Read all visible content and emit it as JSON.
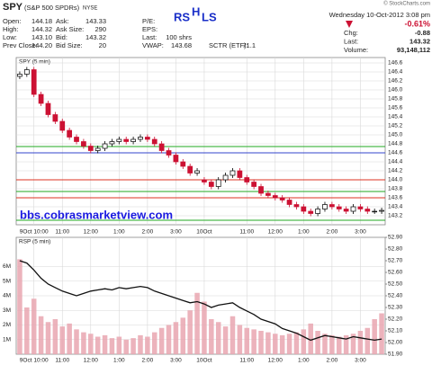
{
  "header": {
    "symbol": "SPY",
    "name": "(S&P 500 SPDRs)",
    "exchange": "NYSE",
    "credit": "© StockCharts.com",
    "datetime": "Wednesday  10-Oct-2012  3:08 pm",
    "change_pct": "-0.61%",
    "fields": [
      {
        "label": "Open:",
        "value": "144.18"
      },
      {
        "label": "High:",
        "value": "144.32"
      },
      {
        "label": "Low:",
        "value": "143.10"
      },
      {
        "label": "Prev Close:",
        "value": "144.20"
      },
      {
        "label": "Ask:",
        "value": "143.33"
      },
      {
        "label": "Ask Size:",
        "value": "290"
      },
      {
        "label": "Bid:",
        "value": "143.32"
      },
      {
        "label": "Bid Size:",
        "value": "20"
      },
      {
        "label": "P/E:"
      },
      {
        "label": "EPS:"
      },
      {
        "label": "Last:",
        "value": "100 shrs"
      },
      {
        "label": "VWAP:",
        "value": "143.68"
      },
      {
        "label": "SCTR (ETF):",
        "value": "71.1"
      }
    ],
    "stats": [
      {
        "label": "Chg:",
        "value": "-0.88"
      },
      {
        "label": "Last:",
        "value": "143.32"
      },
      {
        "label": "Volume:",
        "value": "93,148,112"
      }
    ],
    "pattern": [
      "RS",
      "H",
      "LS"
    ],
    "website": "bbs.cobrasmarketview.com"
  },
  "chart_data": [
    {
      "type": "candlestick",
      "label": "SPY (5 min)",
      "categories": [
        null,
        null,
        "9Oct 10:00",
        null,
        null,
        null,
        "11:00",
        null,
        null,
        null,
        "12:00",
        null,
        null,
        null,
        "1:00",
        null,
        null,
        null,
        "2:00",
        null,
        null,
        null,
        "3:00",
        null,
        null,
        null,
        "10Oct",
        null,
        null,
        null,
        null,
        null,
        "11:00",
        null,
        null,
        null,
        "12:00",
        null,
        null,
        null,
        "1:00",
        null,
        null,
        null,
        "2:00",
        null,
        null,
        null,
        "3:00",
        null,
        null,
        null
      ],
      "open": [
        146.3,
        146.35,
        146.45,
        145.9,
        145.7,
        145.45,
        145.3,
        145.1,
        144.95,
        144.85,
        144.75,
        144.65,
        144.7,
        144.8,
        144.85,
        144.9,
        144.85,
        144.9,
        144.95,
        144.9,
        144.8,
        144.65,
        144.55,
        144.4,
        144.3,
        144.15,
        144.0,
        143.95,
        143.85,
        144.0,
        144.1,
        144.2,
        144.05,
        143.95,
        143.85,
        143.7,
        143.65,
        143.6,
        143.55,
        143.45,
        143.4,
        143.3,
        143.25,
        143.35,
        143.45,
        143.4,
        143.35,
        143.3,
        143.4,
        143.35,
        143.3,
        143.3
      ],
      "high": [
        146.41,
        146.51,
        146.51,
        145.96,
        145.76,
        145.51,
        145.36,
        145.16,
        145.01,
        144.91,
        144.81,
        144.76,
        144.86,
        144.91,
        144.96,
        144.96,
        144.96,
        145.01,
        145.01,
        144.96,
        144.86,
        144.71,
        144.61,
        144.46,
        144.36,
        144.26,
        144.06,
        144.01,
        144.06,
        144.16,
        144.26,
        144.26,
        144.11,
        144.01,
        143.91,
        143.76,
        143.71,
        143.66,
        143.61,
        143.51,
        143.46,
        143.36,
        143.41,
        143.51,
        143.51,
        143.46,
        143.41,
        143.46,
        143.46,
        143.41,
        143.36,
        143.38
      ],
      "low": [
        146.24,
        146.29,
        145.84,
        145.64,
        145.39,
        145.24,
        145.04,
        144.89,
        144.79,
        144.69,
        144.59,
        144.59,
        144.64,
        144.74,
        144.79,
        144.79,
        144.79,
        144.84,
        144.84,
        144.74,
        144.59,
        144.49,
        144.34,
        144.24,
        144.09,
        144.09,
        143.89,
        143.79,
        143.79,
        143.94,
        144.04,
        143.99,
        143.89,
        143.79,
        143.64,
        143.59,
        143.54,
        143.49,
        143.39,
        143.34,
        143.24,
        143.19,
        143.19,
        143.29,
        143.34,
        143.29,
        143.24,
        143.24,
        143.29,
        143.24,
        143.24,
        143.24
      ],
      "close": [
        146.35,
        146.45,
        145.9,
        145.7,
        145.45,
        145.3,
        145.1,
        144.95,
        144.85,
        144.75,
        144.65,
        144.7,
        144.8,
        144.85,
        144.9,
        144.85,
        144.9,
        144.95,
        144.9,
        144.8,
        144.65,
        144.55,
        144.4,
        144.3,
        144.15,
        144.2,
        143.95,
        143.85,
        144.0,
        144.1,
        144.2,
        144.05,
        143.95,
        143.85,
        143.7,
        143.65,
        143.6,
        143.55,
        143.45,
        143.4,
        143.3,
        143.25,
        143.35,
        143.45,
        143.4,
        143.35,
        143.3,
        143.4,
        143.35,
        143.3,
        143.3,
        143.32
      ],
      "up_color": "#000000",
      "down_color": "#cc1133",
      "ylim": [
        143.0,
        146.72
      ],
      "yticks": [
        143.2,
        143.4,
        143.6,
        143.8,
        {
          "value": 144.0,
          "label": "144.0"
        },
        144.2,
        144.4,
        144.6,
        144.8,
        {
          "value": 145.0,
          "label": "145.0"
        },
        145.2,
        145.4,
        145.6,
        145.8,
        {
          "value": 146.0,
          "label": "146.0"
        },
        146.2,
        146.4,
        146.6
      ],
      "hlines": [
        {
          "value": 144.74,
          "color": "#22aa22"
        },
        {
          "value": 144.6,
          "color": "#3344cc"
        },
        {
          "value": 144.0,
          "color": "#dd3322"
        },
        {
          "value": 143.74,
          "color": "#22aa22"
        },
        {
          "value": 143.6,
          "color": "#dd3322"
        },
        {
          "value": 143.1,
          "color": "#22aa22"
        }
      ],
      "grid": true
    },
    {
      "type": "volume",
      "label": "RSP (5 min)",
      "categories": [
        null,
        null,
        "9Oct 10:00",
        null,
        null,
        null,
        "11:00",
        null,
        null,
        null,
        "12:00",
        null,
        null,
        null,
        "1:00",
        null,
        null,
        null,
        "2:00",
        null,
        null,
        null,
        "3:00",
        null,
        null,
        null,
        "10Oct",
        null,
        null,
        null,
        null,
        null,
        "11:00",
        null,
        null,
        null,
        "12:00",
        null,
        null,
        null,
        "1:00",
        null,
        null,
        null,
        "2:00",
        null,
        null,
        null,
        "3:00",
        null,
        null,
        null
      ],
      "series": [
        {
          "color": "#e9a6b0",
          "values": [
            6500000,
            3200000,
            3800000,
            2600000,
            2200000,
            2400000,
            1900000,
            2100000,
            1700000,
            1500000,
            1400000,
            1200000,
            1300000,
            1100000,
            1200000,
            1000000,
            1100000,
            1300000,
            1200000,
            1500000,
            1800000,
            2000000,
            2200000,
            2500000,
            3000000,
            4200000,
            3600000,
            2400000,
            2200000,
            1900000,
            2600000,
            2000000,
            1800000,
            1700000,
            1600000,
            1500000,
            1400000,
            1300000,
            1400000,
            1500000,
            1700000,
            2100000,
            1600000,
            1400000,
            1300000,
            1200000,
            1300000,
            1400000,
            1600000,
            1800000,
            2400000,
            2800000
          ]
        },
        {
          "color": "#111111",
          "axis": "y2",
          "values": [
            52.7,
            52.68,
            52.62,
            52.55,
            52.5,
            52.47,
            52.44,
            52.42,
            52.4,
            52.42,
            52.44,
            52.45,
            52.46,
            52.45,
            52.47,
            52.46,
            52.47,
            52.48,
            52.47,
            52.44,
            52.42,
            52.4,
            52.38,
            52.36,
            52.34,
            52.35,
            52.33,
            52.3,
            52.32,
            52.33,
            52.34,
            52.3,
            52.27,
            52.24,
            52.2,
            52.18,
            52.16,
            52.12,
            52.1,
            52.08,
            52.05,
            52.02,
            52.04,
            52.06,
            52.05,
            52.04,
            52.03,
            52.05,
            52.04,
            52.03,
            52.02,
            52.03
          ]
        }
      ],
      "ylim": [
        0,
        8000000
      ],
      "yticks": [
        {
          "value": 1000000,
          "label": "1M"
        },
        {
          "value": 2000000,
          "label": "2M"
        },
        {
          "value": 3000000,
          "label": "3M"
        },
        {
          "value": 4000000,
          "label": "4M"
        },
        {
          "value": 5000000,
          "label": "5M"
        },
        {
          "value": 6000000,
          "label": "6M"
        }
      ],
      "y2lim": [
        51.9,
        52.9
      ],
      "y2ticks": [
        {
          "value": 51.9,
          "label": "51.90"
        },
        {
          "value": 52.0,
          "label": "52.00"
        },
        {
          "value": 52.1,
          "label": "52.10"
        },
        {
          "value": 52.2,
          "label": "52.20"
        },
        {
          "value": 52.3,
          "label": "52.30"
        },
        {
          "value": 52.4,
          "label": "52.40"
        },
        {
          "value": 52.5,
          "label": "52.50"
        },
        {
          "value": 52.6,
          "label": "52.60"
        },
        {
          "value": 52.7,
          "label": "52.70"
        },
        {
          "value": 52.8,
          "label": "52.80"
        },
        {
          "value": 52.9,
          "label": "52.90"
        }
      ],
      "grid": true
    }
  ]
}
